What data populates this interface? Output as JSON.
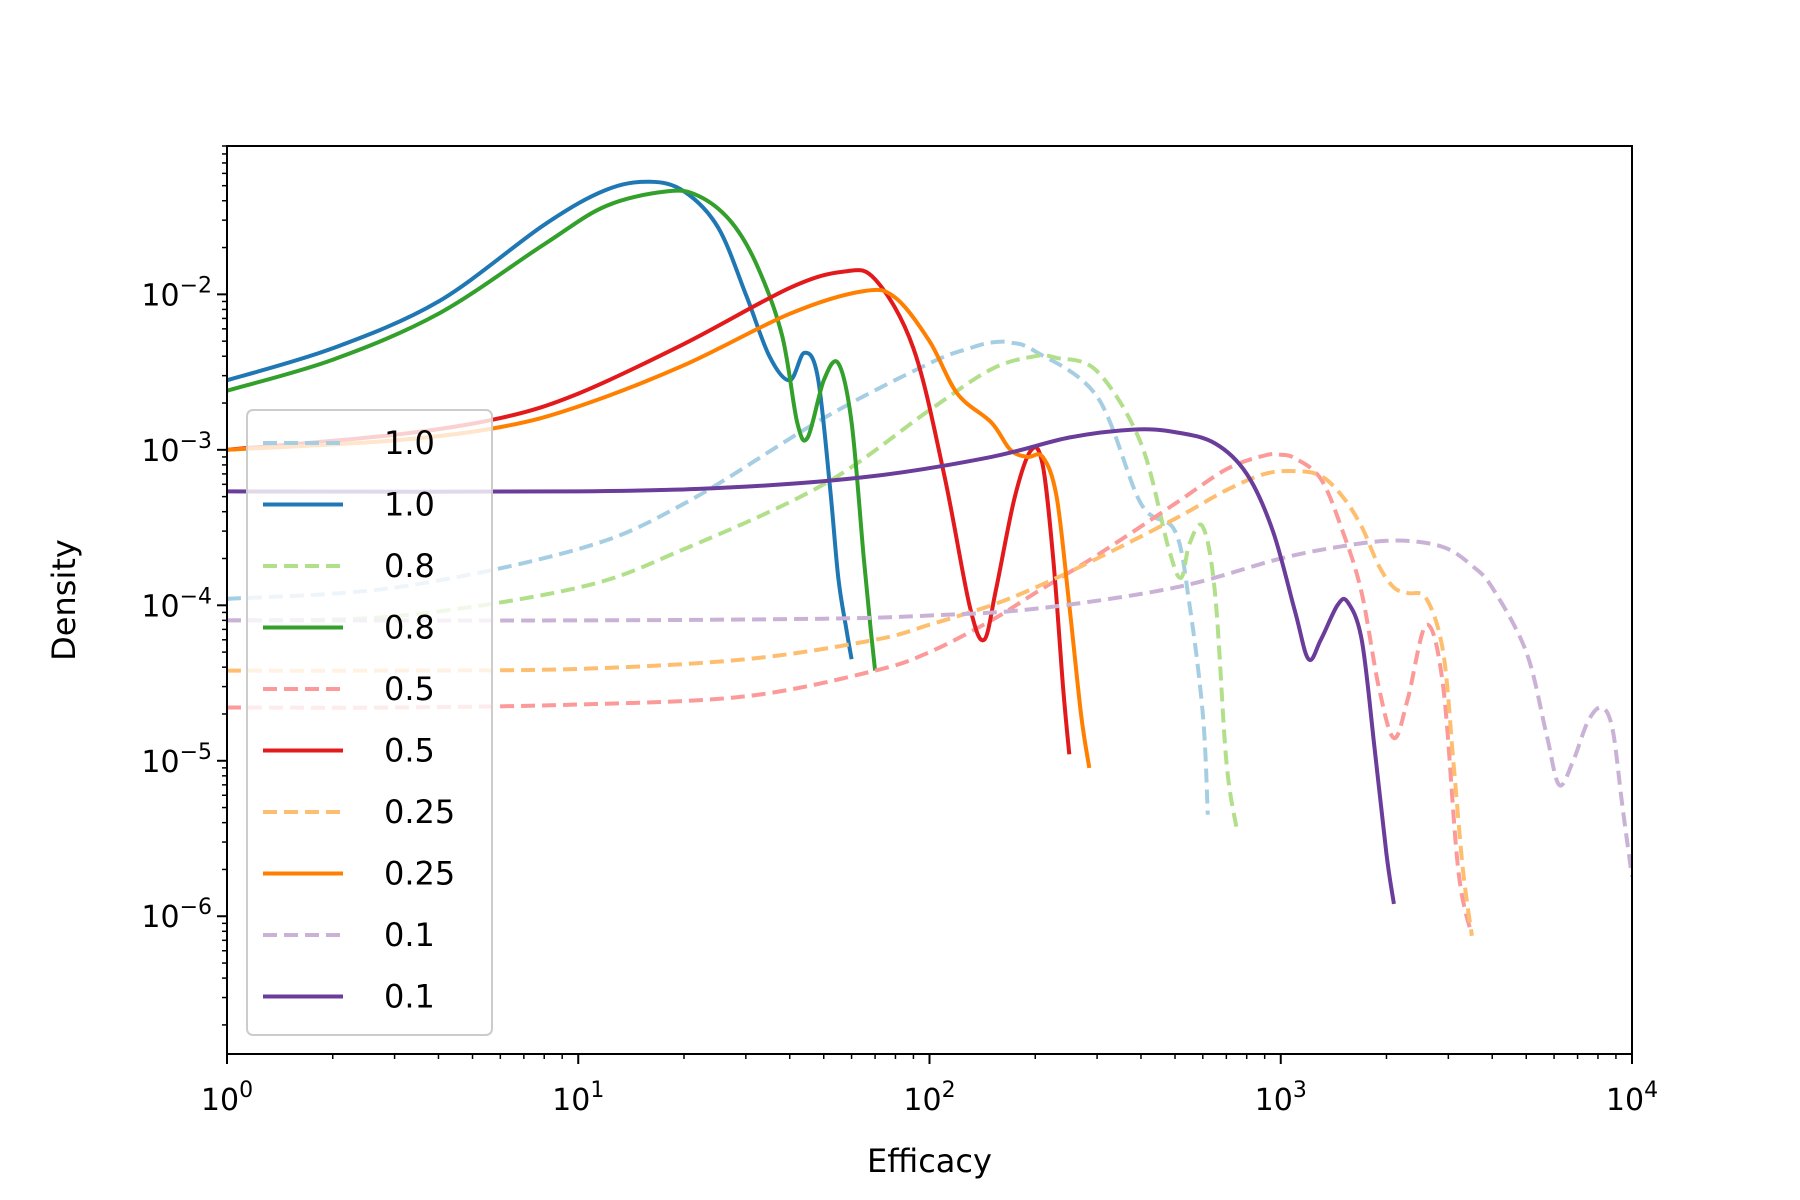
{
  "chart_data": {
    "type": "line",
    "xlabel": "Efficacy",
    "ylabel": "Density",
    "xscale": "log",
    "yscale": "log",
    "xlim": [
      1,
      10000
    ],
    "ylim": [
      1.3e-07,
      0.09
    ],
    "x_ticks": [
      {
        "value": 1,
        "base": "10",
        "exp": "0"
      },
      {
        "value": 10,
        "base": "10",
        "exp": "1"
      },
      {
        "value": 100,
        "base": "10",
        "exp": "2"
      },
      {
        "value": 1000,
        "base": "10",
        "exp": "3"
      },
      {
        "value": 10000,
        "base": "10",
        "exp": "4"
      }
    ],
    "y_ticks": [
      {
        "value": 0.01,
        "base": "10",
        "exp": "−2"
      },
      {
        "value": 0.001,
        "base": "10",
        "exp": "−3"
      },
      {
        "value": 0.0001,
        "base": "10",
        "exp": "−4"
      },
      {
        "value": 1e-05,
        "base": "10",
        "exp": "−5"
      },
      {
        "value": 1e-06,
        "base": "10",
        "exp": "−6"
      }
    ],
    "grid": false,
    "legend_position": "lower-left",
    "series": [
      {
        "name": "1.0",
        "color": "#a6cee3",
        "dashed": true,
        "x": [
          1,
          3,
          10,
          20,
          50,
          100,
          130,
          150,
          170,
          200,
          300,
          400,
          500,
          550,
          600,
          620
        ],
        "y": [
          0.00011,
          0.00013,
          0.00023,
          0.00045,
          0.0016,
          0.0036,
          0.0045,
          0.0049,
          0.0049,
          0.0043,
          0.0022,
          0.00045,
          0.0003,
          0.0001,
          2e-05,
          4.5e-06
        ]
      },
      {
        "name": "1.0",
        "color": "#1f78b4",
        "dashed": false,
        "x": [
          1,
          2,
          4,
          8,
          12,
          16,
          20,
          25,
          30,
          35,
          40,
          44,
          48,
          52,
          55,
          58,
          60
        ],
        "y": [
          0.0028,
          0.0045,
          0.009,
          0.028,
          0.047,
          0.053,
          0.046,
          0.027,
          0.01,
          0.004,
          0.0028,
          0.0042,
          0.003,
          0.0006,
          0.00015,
          7e-05,
          4.5e-05
        ]
      },
      {
        "name": "0.8",
        "color": "#b2df8a",
        "dashed": true,
        "x": [
          1,
          3,
          10,
          20,
          50,
          100,
          150,
          200,
          230,
          300,
          400,
          480,
          520,
          550,
          600,
          650,
          700,
          750
        ],
        "y": [
          8e-05,
          8.5e-05,
          0.00013,
          0.00023,
          0.0006,
          0.0018,
          0.0033,
          0.004,
          0.0039,
          0.0032,
          0.0011,
          0.00023,
          0.00015,
          0.00025,
          0.00032,
          0.00012,
          1e-05,
          3.6e-06
        ]
      },
      {
        "name": "0.8",
        "color": "#33a02c",
        "dashed": false,
        "x": [
          1,
          2,
          4,
          8,
          12,
          18,
          22,
          27,
          32,
          38,
          42,
          45,
          50,
          55,
          60,
          65,
          68,
          70
        ],
        "y": [
          0.0024,
          0.0038,
          0.0075,
          0.021,
          0.037,
          0.046,
          0.043,
          0.03,
          0.016,
          0.0055,
          0.0015,
          0.0012,
          0.0028,
          0.0036,
          0.0015,
          0.0002,
          7e-05,
          3.8e-05
        ]
      },
      {
        "name": "0.5",
        "color": "#fb9a99",
        "dashed": true,
        "x": [
          1,
          3,
          10,
          30,
          70,
          100,
          150,
          200,
          300,
          500,
          700,
          900,
          1000,
          1100,
          1300,
          1500,
          1700,
          1900,
          2100,
          2300,
          2600,
          2900,
          3200,
          3500
        ],
        "y": [
          2.2e-05,
          2.2e-05,
          2.3e-05,
          2.6e-05,
          3.8e-05,
          5e-05,
          8e-05,
          0.00012,
          0.00021,
          0.00045,
          0.00075,
          0.00092,
          0.00093,
          0.00088,
          0.00065,
          0.0003,
          0.00012,
          3e-05,
          1.4e-05,
          2.5e-05,
          7.5e-05,
          3e-05,
          2e-06,
          7.5e-07
        ]
      },
      {
        "name": "0.5",
        "color": "#e31a1c",
        "dashed": false,
        "x": [
          1,
          3,
          6,
          10,
          20,
          40,
          57,
          70,
          90,
          110,
          130,
          143,
          155,
          175,
          195,
          210,
          225,
          240,
          250
        ],
        "y": [
          0.001,
          0.00125,
          0.0016,
          0.0023,
          0.0048,
          0.011,
          0.014,
          0.0125,
          0.0045,
          0.0007,
          0.0001,
          6e-05,
          0.00013,
          0.0005,
          0.001,
          0.0008,
          0.0002,
          3e-05,
          1.1e-05
        ]
      },
      {
        "name": "0.25",
        "color": "#fdbf6f",
        "dashed": true,
        "x": [
          1,
          3,
          10,
          30,
          70,
          100,
          150,
          200,
          300,
          500,
          700,
          900,
          1100,
          1300,
          1500,
          1700,
          1900,
          2100,
          2300,
          2600,
          2900,
          3100,
          3300,
          3500
        ],
        "y": [
          3.8e-05,
          3.8e-05,
          3.9e-05,
          4.5e-05,
          6e-05,
          7.5e-05,
          0.0001,
          0.00013,
          0.0002,
          0.00036,
          0.00055,
          0.0007,
          0.00073,
          0.00068,
          0.0005,
          0.00032,
          0.00018,
          0.00013,
          0.00012,
          0.00011,
          5e-05,
          1e-05,
          2e-06,
          7.5e-07
        ]
      },
      {
        "name": "0.25",
        "color": "#ff7f00",
        "dashed": false,
        "x": [
          1,
          3,
          6,
          10,
          20,
          40,
          65,
          80,
          100,
          120,
          150,
          170,
          190,
          210,
          230,
          250,
          270,
          285
        ],
        "y": [
          0.001,
          0.00115,
          0.0014,
          0.0019,
          0.0035,
          0.0075,
          0.0105,
          0.0095,
          0.005,
          0.0023,
          0.0015,
          0.001,
          0.0009,
          0.0009,
          0.0005,
          0.0001,
          2e-05,
          9e-06
        ]
      },
      {
        "name": "0.1",
        "color": "#cab2d6",
        "dashed": true,
        "x": [
          1,
          10,
          50,
          100,
          200,
          500,
          1000,
          1500,
          2000,
          2500,
          3000,
          3500,
          4000,
          5000,
          5700,
          6200,
          6800,
          7500,
          8200,
          8800,
          9400,
          10000
        ],
        "y": [
          8e-05,
          8e-05,
          8.2e-05,
          8.6e-05,
          9.5e-05,
          0.00013,
          0.0002,
          0.00024,
          0.00026,
          0.000255,
          0.00023,
          0.00018,
          0.00013,
          5e-05,
          1.5e-05,
          7e-06,
          1e-05,
          1.8e-05,
          2.2e-05,
          1.6e-05,
          5e-06,
          1.8e-06
        ]
      },
      {
        "name": "0.1",
        "color": "#6a3d9a",
        "dashed": false,
        "x": [
          1,
          10,
          30,
          70,
          150,
          250,
          380,
          500,
          650,
          800,
          950,
          1100,
          1200,
          1300,
          1450,
          1550,
          1700,
          1850,
          2000,
          2100
        ],
        "y": [
          0.00054,
          0.00054,
          0.00058,
          0.00068,
          0.0009,
          0.0012,
          0.00135,
          0.0013,
          0.0011,
          0.0007,
          0.0003,
          9e-05,
          4.5e-05,
          6e-05,
          0.0001,
          0.000105,
          6e-05,
          1.2e-05,
          2.5e-06,
          1.2e-06
        ]
      }
    ]
  }
}
